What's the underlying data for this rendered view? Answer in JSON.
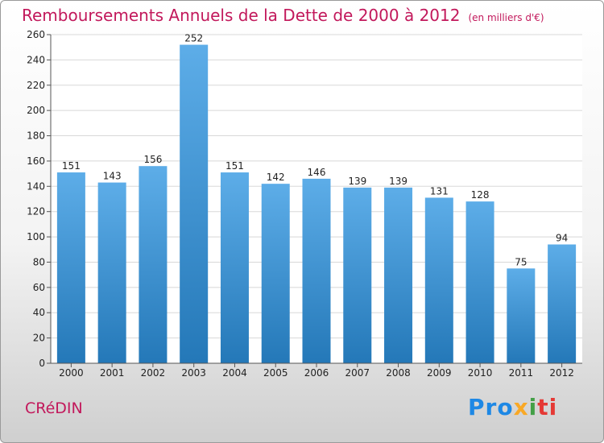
{
  "title": "Remboursements Annuels de la Dette de 2000 à 2012",
  "unit": "(en milliers d'€)",
  "commune": "CRéDIN",
  "brand": [
    "Pro",
    "x",
    "i",
    "ti"
  ],
  "colors": {
    "accent": "#c2185b",
    "bar_top": "#5dade8",
    "bar_bottom": "#2478b8"
  },
  "chart_data": {
    "type": "bar",
    "title": "Remboursements Annuels de la Dette de 2000 à 2012",
    "xlabel": "",
    "ylabel": "",
    "categories": [
      "2000",
      "2001",
      "2002",
      "2003",
      "2004",
      "2005",
      "2006",
      "2007",
      "2008",
      "2009",
      "2010",
      "2011",
      "2012"
    ],
    "values": [
      151,
      143,
      156,
      252,
      151,
      142,
      146,
      139,
      139,
      131,
      128,
      75,
      94
    ],
    "ylim": [
      0,
      260
    ],
    "yticks": [
      0,
      20,
      40,
      60,
      80,
      100,
      120,
      140,
      160,
      180,
      200,
      220,
      240,
      260
    ],
    "grid": true,
    "data_labels": true
  }
}
